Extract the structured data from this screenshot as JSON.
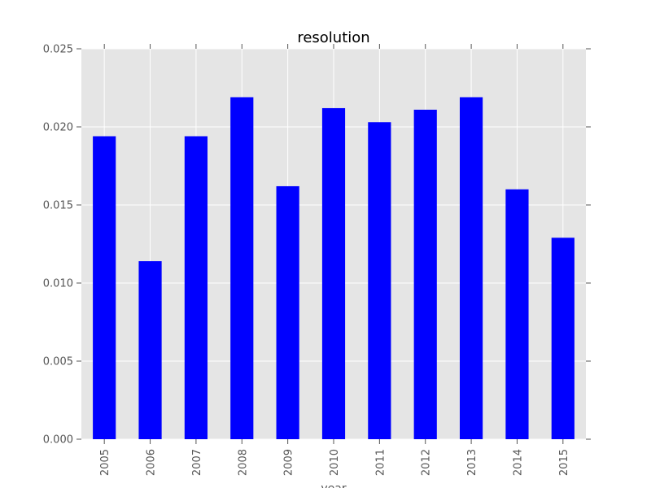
{
  "chart_data": {
    "type": "bar",
    "title": "resolution",
    "xlabel": "year",
    "ylabel": "",
    "categories": [
      "2005",
      "2006",
      "2007",
      "2008",
      "2009",
      "2010",
      "2011",
      "2012",
      "2013",
      "2014",
      "2015"
    ],
    "values": [
      0.0194,
      0.0114,
      0.0194,
      0.0219,
      0.0162,
      0.0212,
      0.0203,
      0.0211,
      0.0219,
      0.016,
      0.0129
    ],
    "ylim": [
      0,
      0.025
    ],
    "yticks": [
      0.0,
      0.005,
      0.01,
      0.015,
      0.02,
      0.025
    ],
    "ytick_labels": [
      "0.000",
      "0.005",
      "0.010",
      "0.015",
      "0.020",
      "0.025"
    ],
    "grid": true,
    "legend": "none",
    "colors": {
      "bar": "#0000ff",
      "plot_background": "#e5e5e5",
      "grid": "#ffffff",
      "tick_label": "#555555"
    }
  }
}
